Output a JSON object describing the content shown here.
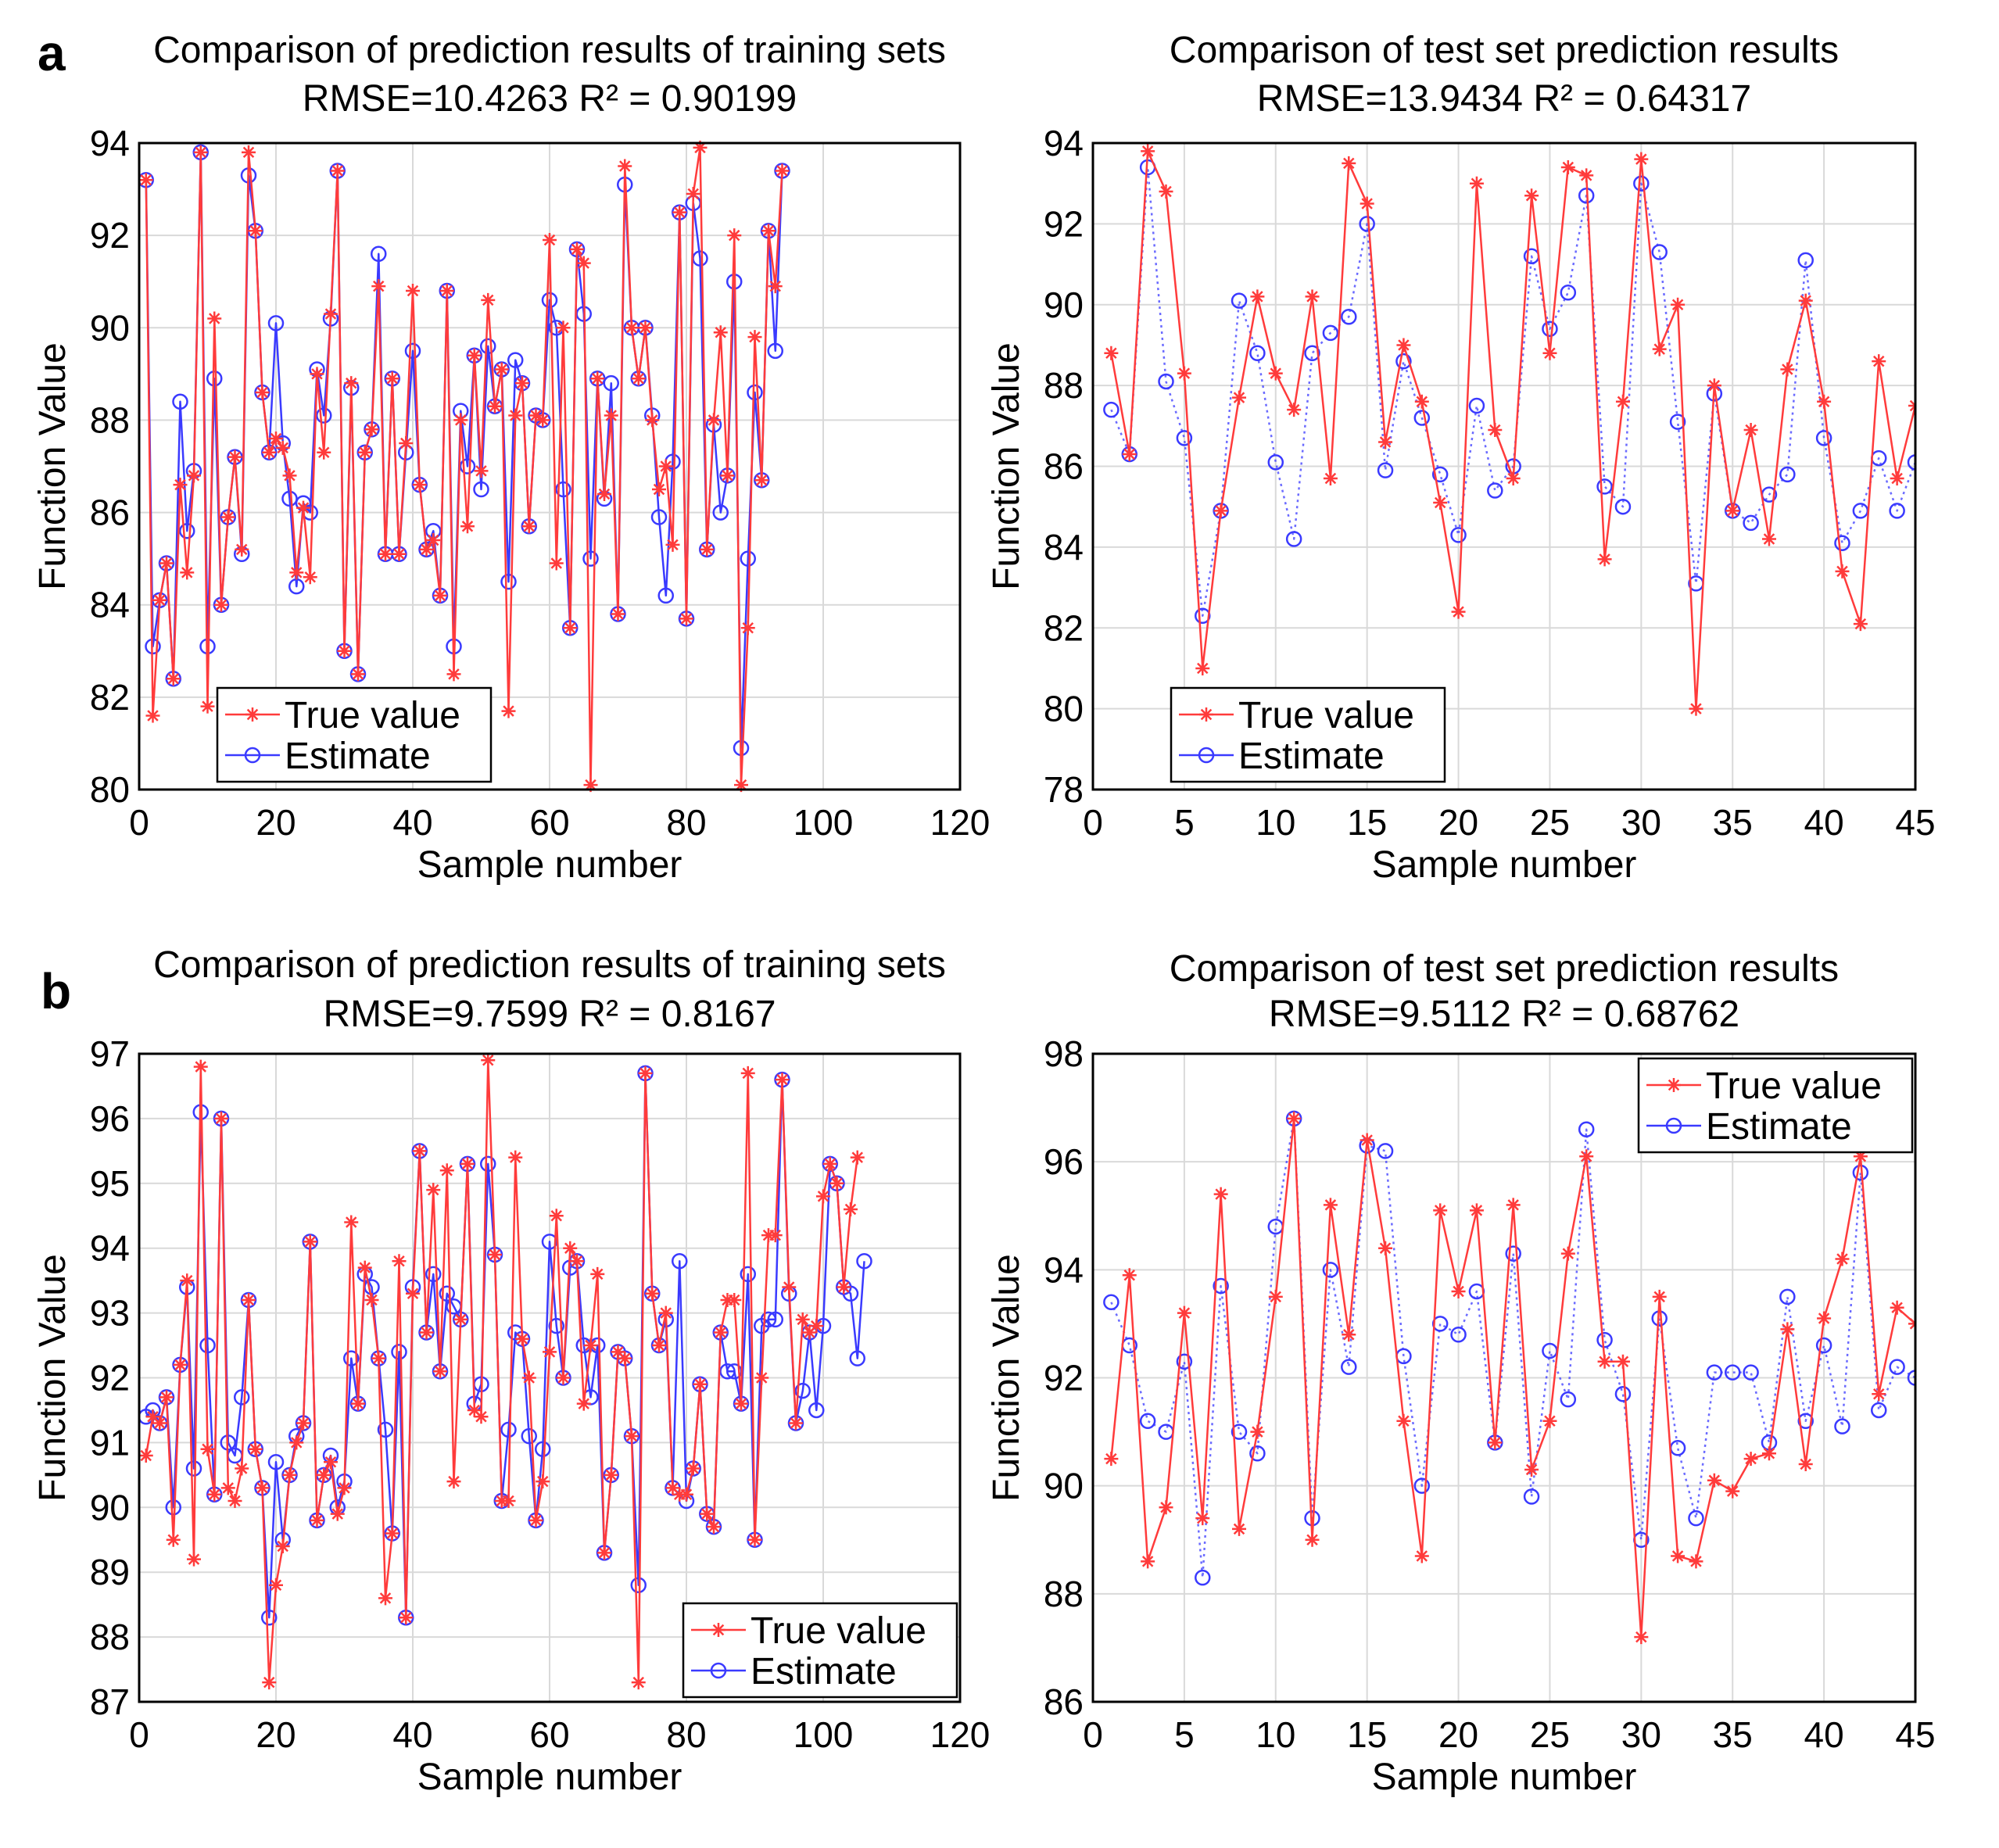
{
  "panels": [
    {
      "letter": "a"
    },
    {
      "letter": "b"
    }
  ],
  "colors": {
    "true_value": "#ff3b3b",
    "estimate": "#3a3aff"
  },
  "chart_data": [
    {
      "type": "line",
      "panel": "a",
      "title": "Comparison of prediction results of training sets",
      "subtitle": "RMSE=10.4263 R² = 0.90199",
      "xlabel": "Sample number",
      "ylabel": "Function Value",
      "xlim": [
        0,
        120
      ],
      "ylim": [
        80,
        94
      ],
      "xticks": [
        0,
        20,
        40,
        60,
        80,
        100,
        120
      ],
      "yticks": [
        80,
        82,
        84,
        86,
        88,
        90,
        92,
        94
      ],
      "legend": {
        "position": "bottom-left"
      },
      "series": [
        {
          "name": "True value",
          "style": "solid-star",
          "x_start": 1,
          "values": [
            93.2,
            81.6,
            84.1,
            84.9,
            82.4,
            86.6,
            84.7,
            86.8,
            93.8,
            81.8,
            90.2,
            84.0,
            85.9,
            87.2,
            85.2,
            93.8,
            92.1,
            88.6,
            87.3,
            87.6,
            87.4,
            86.8,
            84.7,
            86.1,
            84.6,
            89.0,
            87.3,
            90.3,
            93.4,
            83.0,
            88.8,
            82.5,
            87.3,
            87.8,
            90.9,
            85.1,
            88.9,
            85.1,
            87.5,
            90.8,
            86.6,
            85.2,
            85.4,
            84.2,
            90.8,
            82.5,
            88.0,
            85.7,
            89.4,
            86.9,
            90.6,
            88.3,
            89.1,
            81.7,
            88.1,
            88.8,
            85.7,
            88.1,
            88.0,
            91.9,
            84.9,
            90.0,
            83.5,
            91.7,
            91.4,
            80.1,
            88.9,
            86.4,
            88.1,
            83.8,
            93.5,
            90.0,
            88.9,
            90.0,
            88.0,
            86.5,
            87.0,
            85.3,
            92.5,
            83.7,
            92.9,
            93.9,
            85.2,
            88.0,
            89.9,
            86.8,
            92.0,
            80.1,
            83.5,
            89.8,
            86.7,
            92.1,
            90.9,
            93.4
          ]
        },
        {
          "name": "Estimate",
          "style": "solid-circle",
          "x_start": 1,
          "values": [
            93.2,
            83.1,
            84.1,
            84.9,
            82.4,
            88.4,
            85.6,
            86.9,
            93.8,
            83.1,
            88.9,
            84.0,
            85.9,
            87.2,
            85.1,
            93.3,
            92.1,
            88.6,
            87.3,
            90.1,
            87.5,
            86.3,
            84.4,
            86.2,
            86.0,
            89.1,
            88.1,
            90.2,
            93.4,
            83.0,
            88.7,
            82.5,
            87.3,
            87.8,
            91.6,
            85.1,
            88.9,
            85.1,
            87.3,
            89.5,
            86.6,
            85.2,
            85.6,
            84.2,
            90.8,
            83.1,
            88.2,
            87.0,
            89.4,
            86.5,
            89.6,
            88.3,
            89.1,
            84.5,
            89.3,
            88.8,
            85.7,
            88.1,
            88.0,
            90.6,
            90.0,
            86.5,
            83.5,
            91.7,
            90.3,
            85.0,
            88.9,
            86.3,
            88.8,
            83.8,
            93.1,
            90.0,
            88.9,
            90.0,
            88.1,
            85.9,
            84.2,
            87.1,
            92.5,
            83.7,
            92.7,
            91.5,
            85.2,
            87.9,
            86.0,
            86.8,
            91.0,
            80.9,
            85.0,
            88.6,
            86.7,
            92.1,
            89.5,
            93.4
          ]
        }
      ]
    },
    {
      "type": "line",
      "panel": "a",
      "title": "Comparison of test set prediction results",
      "subtitle": "RMSE=13.9434 R² = 0.64317",
      "xlabel": "Sample number",
      "ylabel": "Function Value",
      "xlim": [
        0,
        45
      ],
      "ylim": [
        78,
        94
      ],
      "xticks": [
        0,
        5,
        10,
        15,
        20,
        25,
        30,
        35,
        40,
        45
      ],
      "yticks": [
        78,
        80,
        82,
        84,
        86,
        88,
        90,
        92,
        94
      ],
      "legend": {
        "position": "bottom-left"
      },
      "series": [
        {
          "name": "True value",
          "style": "solid-star",
          "x_start": 1,
          "values": [
            88.8,
            86.3,
            93.8,
            92.8,
            88.3,
            81.0,
            84.9,
            87.7,
            90.2,
            88.3,
            87.4,
            90.2,
            85.7,
            93.5,
            92.5,
            86.6,
            89.0,
            87.6,
            85.1,
            82.4,
            93.0,
            86.9,
            85.7,
            92.7,
            88.8,
            93.4,
            93.2,
            83.7,
            87.6,
            93.6,
            88.9,
            90.0,
            80.0,
            88.0,
            84.9,
            86.9,
            84.2,
            88.4,
            90.1,
            87.6,
            83.4,
            82.1,
            88.6,
            85.7,
            87.5
          ]
        },
        {
          "name": "Estimate",
          "style": "dotted-circle",
          "x_start": 1,
          "values": [
            87.4,
            86.3,
            93.4,
            88.1,
            86.7,
            82.3,
            84.9,
            90.1,
            88.8,
            86.1,
            84.2,
            88.8,
            89.3,
            89.7,
            92.0,
            85.9,
            88.6,
            87.2,
            85.8,
            84.3,
            87.5,
            85.4,
            86.0,
            91.2,
            89.4,
            90.3,
            92.7,
            85.5,
            85.0,
            93.0,
            91.3,
            87.1,
            83.1,
            87.8,
            84.9,
            84.6,
            85.3,
            85.8,
            91.1,
            86.7,
            84.1,
            84.9,
            86.2,
            84.9,
            86.1
          ]
        }
      ]
    },
    {
      "type": "line",
      "panel": "b",
      "title": "Comparison of prediction results of training sets",
      "subtitle": "RMSE=9.7599 R² = 0.8167",
      "xlabel": "Sample number",
      "ylabel": "Function Value",
      "xlim": [
        0,
        120
      ],
      "ylim": [
        87,
        97
      ],
      "xticks": [
        0,
        20,
        40,
        60,
        80,
        100,
        120
      ],
      "yticks": [
        87,
        88,
        89,
        90,
        91,
        92,
        93,
        94,
        95,
        96,
        97
      ],
      "legend": {
        "position": "bottom-right"
      },
      "series": [
        {
          "name": "True value",
          "style": "solid-star",
          "x_start": 1,
          "values": [
            90.8,
            91.4,
            91.3,
            91.7,
            89.5,
            92.2,
            93.5,
            89.2,
            96.8,
            90.9,
            90.2,
            96.0,
            90.3,
            90.1,
            90.6,
            93.2,
            90.9,
            90.3,
            87.3,
            88.8,
            89.4,
            90.5,
            91.0,
            91.3,
            94.1,
            89.8,
            90.5,
            90.7,
            89.9,
            90.3,
            94.4,
            91.6,
            93.7,
            93.2,
            92.3,
            88.6,
            89.6,
            93.8,
            88.3,
            93.3,
            95.5,
            92.7,
            94.9,
            92.1,
            95.2,
            90.4,
            92.9,
            95.3,
            91.5,
            91.4,
            96.9,
            93.9,
            90.1,
            90.1,
            95.4,
            92.6,
            92.0,
            89.8,
            90.4,
            92.4,
            94.5,
            92.0,
            94.0,
            93.8,
            91.6,
            92.5,
            93.6,
            89.3,
            90.5,
            92.4,
            92.3,
            91.1,
            87.3,
            96.7,
            93.3,
            92.5,
            93.0,
            90.3,
            90.2,
            90.2,
            90.6,
            91.9,
            89.9,
            89.7,
            92.7,
            93.2,
            93.2,
            91.6,
            96.7,
            89.5,
            92.0,
            94.2,
            94.2,
            96.6,
            93.4,
            91.3,
            92.9,
            92.7,
            92.8,
            94.8,
            95.3,
            95.0,
            93.4,
            94.6,
            95.4
          ]
        },
        {
          "name": "Estimate",
          "style": "solid-circle",
          "x_start": 1,
          "values": [
            91.4,
            91.5,
            91.3,
            91.7,
            90.0,
            92.2,
            93.4,
            90.6,
            96.1,
            92.5,
            90.2,
            96.0,
            91.0,
            90.8,
            91.7,
            93.2,
            90.9,
            90.3,
            88.3,
            90.7,
            89.5,
            90.5,
            91.1,
            91.3,
            94.1,
            89.8,
            90.5,
            90.8,
            90.0,
            90.4,
            92.3,
            91.6,
            93.6,
            93.4,
            92.3,
            91.2,
            89.6,
            92.4,
            88.3,
            93.4,
            95.5,
            92.7,
            93.6,
            92.1,
            93.3,
            93.1,
            92.9,
            95.3,
            91.6,
            91.9,
            95.3,
            93.9,
            90.1,
            91.2,
            92.7,
            92.6,
            91.1,
            89.8,
            90.9,
            94.1,
            92.8,
            92.0,
            93.7,
            93.8,
            92.5,
            91.7,
            92.5,
            89.3,
            90.5,
            92.4,
            92.3,
            91.1,
            88.8,
            96.7,
            93.3,
            92.5,
            92.9,
            90.3,
            93.8,
            90.1,
            90.6,
            91.9,
            89.9,
            89.7,
            92.7,
            92.1,
            92.1,
            91.6,
            93.6,
            89.5,
            92.8,
            92.9,
            92.9,
            96.6,
            93.3,
            91.3,
            91.8,
            92.7,
            91.5,
            92.8,
            95.3,
            95.0,
            93.4,
            93.3,
            92.3,
            93.8
          ]
        }
      ]
    },
    {
      "type": "line",
      "panel": "b",
      "title": "Comparison of test set prediction results",
      "subtitle": "RMSE=9.5112 R² = 0.68762",
      "xlabel": "Sample number",
      "ylabel": "Function Value",
      "xlim": [
        0,
        45
      ],
      "ylim": [
        86,
        98
      ],
      "xticks": [
        0,
        5,
        10,
        15,
        20,
        25,
        30,
        35,
        40,
        45
      ],
      "yticks": [
        86,
        88,
        90,
        92,
        94,
        96,
        98
      ],
      "legend": {
        "position": "top-right"
      },
      "series": [
        {
          "name": "True value",
          "style": "solid-star",
          "x_start": 1,
          "values": [
            90.5,
            93.9,
            88.6,
            89.6,
            93.2,
            89.4,
            95.4,
            89.2,
            91.0,
            93.5,
            96.8,
            89.0,
            95.2,
            92.8,
            96.4,
            94.4,
            91.2,
            88.7,
            95.1,
            93.6,
            95.1,
            90.8,
            95.2,
            90.3,
            91.2,
            94.3,
            96.1,
            92.3,
            92.3,
            87.2,
            93.5,
            88.7,
            88.6,
            90.1,
            89.9,
            90.5,
            90.6,
            92.9,
            90.4,
            93.1,
            94.2,
            96.1,
            91.7,
            93.3,
            93.0
          ]
        },
        {
          "name": "Estimate",
          "style": "dotted-circle",
          "x_start": 1,
          "values": [
            93.4,
            92.6,
            91.2,
            91.0,
            92.3,
            88.3,
            93.7,
            91.0,
            90.6,
            94.8,
            96.8,
            89.4,
            94.0,
            92.2,
            96.3,
            96.2,
            92.4,
            90.0,
            93.0,
            92.8,
            93.6,
            90.8,
            94.3,
            89.8,
            92.5,
            91.6,
            96.6,
            92.7,
            91.7,
            89.0,
            93.1,
            90.7,
            89.4,
            92.1,
            92.1,
            92.1,
            90.8,
            93.5,
            91.2,
            92.6,
            91.1,
            95.8,
            91.4,
            92.2,
            92.0
          ]
        }
      ]
    }
  ]
}
